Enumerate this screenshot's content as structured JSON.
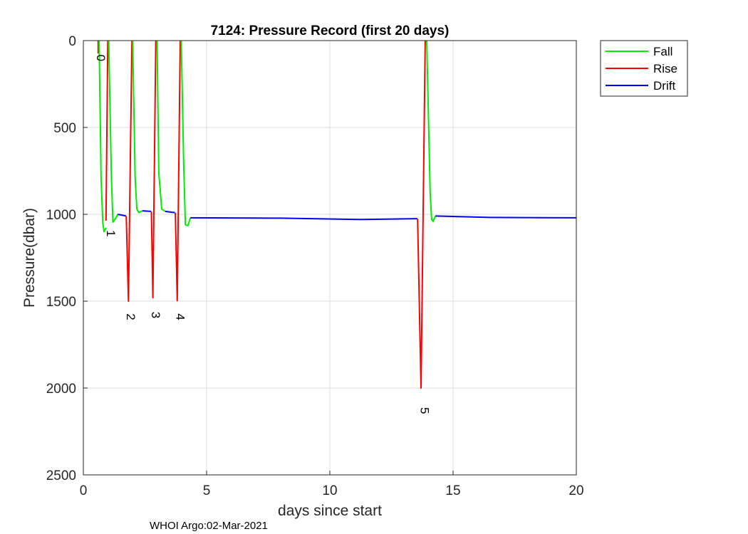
{
  "chart_data": {
    "type": "line",
    "title": "7124: Pressure Record (first 20 days)",
    "xlabel": "days since start",
    "ylabel": "Pressure(dbar)",
    "xlim": [
      0,
      20
    ],
    "ylim": [
      0,
      2500
    ],
    "y_reversed": true,
    "grid": true,
    "xticks": [
      0,
      5,
      10,
      15,
      20
    ],
    "yticks": [
      0,
      500,
      1000,
      1500,
      2000,
      2500
    ],
    "legend_position": "outside-top-right",
    "colors": {
      "Fall": "#00ee00",
      "Rise": "#ff0000",
      "Drift": "#0000ff"
    },
    "segments": [
      {
        "series": "Rise",
        "points": [
          [
            0.6,
            0
          ],
          [
            0.6,
            74
          ]
        ]
      },
      {
        "series": "Fall",
        "points": [
          [
            0.64,
            0
          ],
          [
            0.72,
            790
          ],
          [
            0.79,
            1050
          ],
          [
            0.84,
            1100
          ],
          [
            0.92,
            1077
          ]
        ]
      },
      {
        "series": "Rise",
        "points": [
          [
            0.92,
            1037
          ],
          [
            0.99,
            0
          ]
        ]
      },
      {
        "series": "Fall",
        "points": [
          [
            1.03,
            0
          ],
          [
            1.14,
            790
          ],
          [
            1.2,
            1045
          ],
          [
            1.3,
            1025
          ],
          [
            1.4,
            1000
          ]
        ]
      },
      {
        "series": "Drift",
        "points": [
          [
            1.4,
            1000
          ],
          [
            1.73,
            1010
          ]
        ]
      },
      {
        "series": "Rise",
        "points": [
          [
            1.74,
            1010
          ],
          [
            1.83,
            1500
          ],
          [
            1.97,
            0
          ]
        ]
      },
      {
        "series": "Fall",
        "points": [
          [
            2.0,
            0
          ],
          [
            2.1,
            790
          ],
          [
            2.17,
            970
          ],
          [
            2.25,
            990
          ],
          [
            2.39,
            980
          ]
        ]
      },
      {
        "series": "Drift",
        "points": [
          [
            2.39,
            980
          ],
          [
            2.75,
            983
          ]
        ]
      },
      {
        "series": "Rise",
        "points": [
          [
            2.76,
            985
          ],
          [
            2.82,
            1480
          ],
          [
            2.94,
            0
          ]
        ]
      },
      {
        "series": "Fall",
        "points": [
          [
            2.99,
            0
          ],
          [
            3.06,
            760
          ],
          [
            3.18,
            970
          ],
          [
            3.32,
            983
          ]
        ]
      },
      {
        "series": "Drift",
        "points": [
          [
            3.32,
            983
          ],
          [
            3.71,
            990
          ]
        ]
      },
      {
        "series": "Rise",
        "points": [
          [
            3.73,
            990
          ],
          [
            3.81,
            1497
          ],
          [
            3.93,
            0
          ]
        ]
      },
      {
        "series": "Fall",
        "points": [
          [
            3.97,
            0
          ],
          [
            4.07,
            700
          ],
          [
            4.14,
            1060
          ],
          [
            4.24,
            1065
          ],
          [
            4.34,
            1020
          ]
        ]
      },
      {
        "series": "Drift",
        "points": [
          [
            4.34,
            1020
          ],
          [
            8,
            1022
          ],
          [
            11.2,
            1030
          ],
          [
            13.55,
            1025
          ]
        ]
      },
      {
        "series": "Rise",
        "points": [
          [
            13.56,
            1025
          ],
          [
            13.7,
            2000
          ],
          [
            13.87,
            0
          ]
        ]
      },
      {
        "series": "Fall",
        "points": [
          [
            13.93,
            0
          ],
          [
            14.07,
            873
          ],
          [
            14.13,
            1030
          ],
          [
            14.19,
            1040
          ],
          [
            14.28,
            1010
          ]
        ]
      },
      {
        "series": "Drift",
        "points": [
          [
            14.28,
            1010
          ],
          [
            16.5,
            1018
          ],
          [
            20,
            1020
          ]
        ]
      }
    ],
    "annotations": [
      {
        "text": "0",
        "x": 0.55,
        "y": 100
      },
      {
        "text": "1",
        "x": 0.95,
        "y": 1110
      },
      {
        "text": "2",
        "x": 1.77,
        "y": 1590
      },
      {
        "text": "3",
        "x": 2.78,
        "y": 1580
      },
      {
        "text": "4",
        "x": 3.77,
        "y": 1590
      },
      {
        "text": "5",
        "x": 13.68,
        "y": 2130
      }
    ],
    "legend": [
      "Fall",
      "Rise",
      "Drift"
    ]
  },
  "footer": "WHOI Argo:02-Mar-2021"
}
